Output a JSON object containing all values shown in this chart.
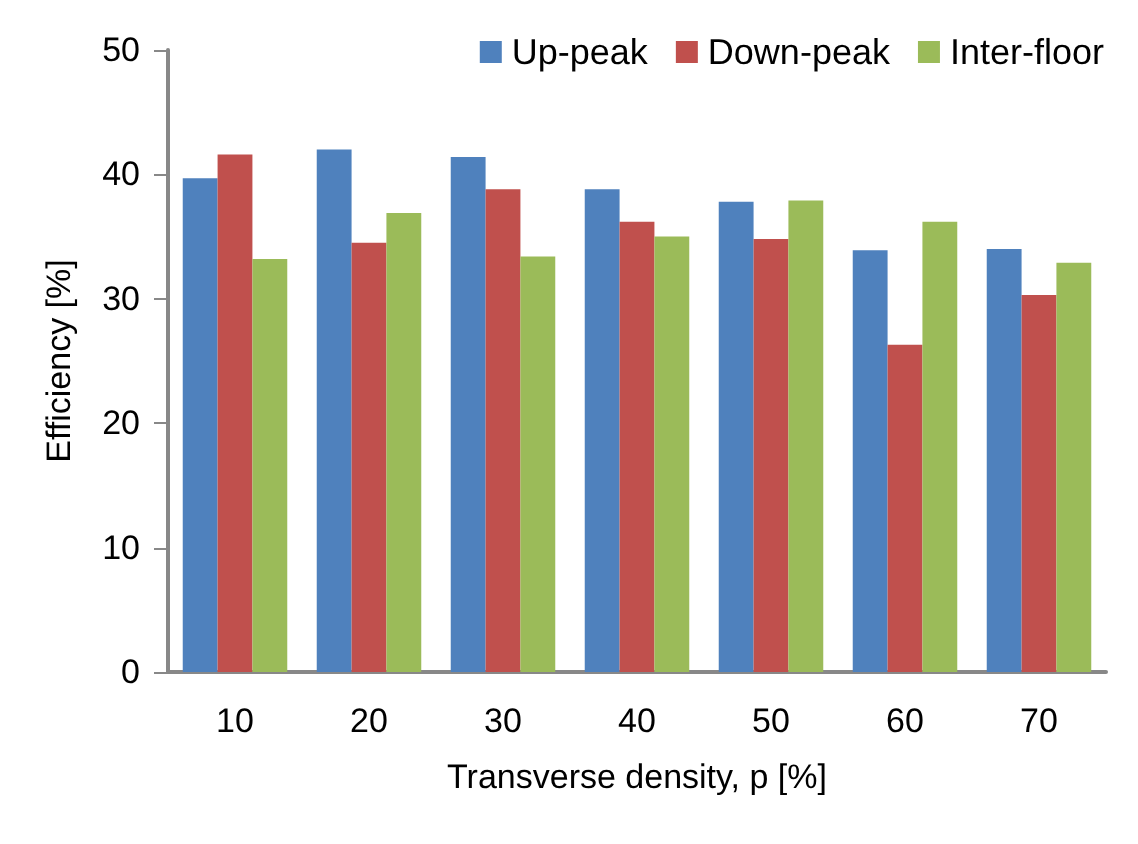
{
  "chart_data": {
    "type": "bar",
    "xlabel": "Transverse density, p [%]",
    "ylabel": "Efficiency [%]",
    "categories": [
      "10",
      "20",
      "30",
      "40",
      "50",
      "60",
      "70"
    ],
    "series": [
      {
        "name": "Up-peak",
        "color": "#4f81bd",
        "values": [
          39.7,
          42.0,
          41.4,
          38.8,
          37.8,
          33.9,
          34.0
        ]
      },
      {
        "name": "Down-peak",
        "color": "#c0504d",
        "values": [
          41.6,
          34.5,
          38.8,
          36.2,
          34.8,
          26.3,
          30.3
        ]
      },
      {
        "name": "Inter-floor",
        "color": "#9bbb59",
        "values": [
          33.2,
          36.9,
          33.4,
          35.0,
          37.9,
          36.2,
          32.9
        ]
      }
    ],
    "ylim": [
      0,
      50
    ],
    "yticks": [
      0,
      10,
      20,
      30,
      40,
      50
    ],
    "grid": false,
    "legend": "top right"
  }
}
